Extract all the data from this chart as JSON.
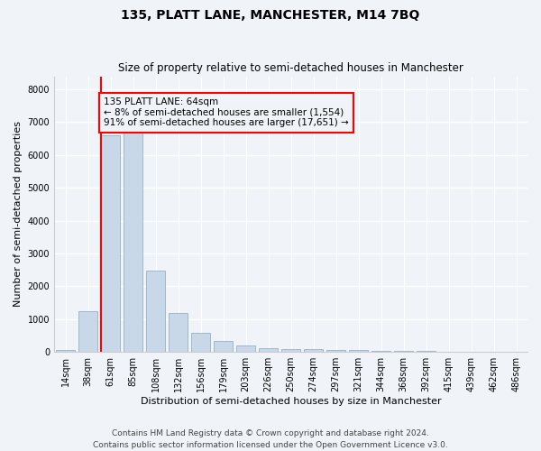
{
  "title": "135, PLATT LANE, MANCHESTER, M14 7BQ",
  "subtitle": "Size of property relative to semi-detached houses in Manchester",
  "xlabel": "Distribution of semi-detached houses by size in Manchester",
  "ylabel": "Number of semi-detached properties",
  "bar_color": "#c8d8e8",
  "bar_edge_color": "#a0b8cc",
  "background_color": "#f0f4f8",
  "categories": [
    "14sqm",
    "38sqm",
    "61sqm",
    "85sqm",
    "108sqm",
    "132sqm",
    "156sqm",
    "179sqm",
    "203sqm",
    "226sqm",
    "250sqm",
    "274sqm",
    "297sqm",
    "321sqm",
    "344sqm",
    "368sqm",
    "392sqm",
    "415sqm",
    "439sqm",
    "462sqm",
    "486sqm"
  ],
  "values": [
    50,
    1250,
    6600,
    6680,
    2480,
    1200,
    570,
    340,
    210,
    120,
    100,
    80,
    70,
    55,
    40,
    30,
    20,
    15,
    10,
    5,
    5
  ],
  "ylim": [
    0,
    8400
  ],
  "yticks": [
    0,
    1000,
    2000,
    3000,
    4000,
    5000,
    6000,
    7000,
    8000
  ],
  "annotation_text": "135 PLATT LANE: 64sqm\n← 8% of semi-detached houses are smaller (1,554)\n91% of semi-detached houses are larger (17,651) →",
  "red_line_bar_index": 2,
  "footer": "Contains HM Land Registry data © Crown copyright and database right 2024.\nContains public sector information licensed under the Open Government Licence v3.0.",
  "grid_color": "#ffffff",
  "title_fontsize": 10,
  "subtitle_fontsize": 8.5,
  "annotation_fontsize": 7.5,
  "tick_fontsize": 7,
  "label_fontsize": 8,
  "footer_fontsize": 6.5
}
